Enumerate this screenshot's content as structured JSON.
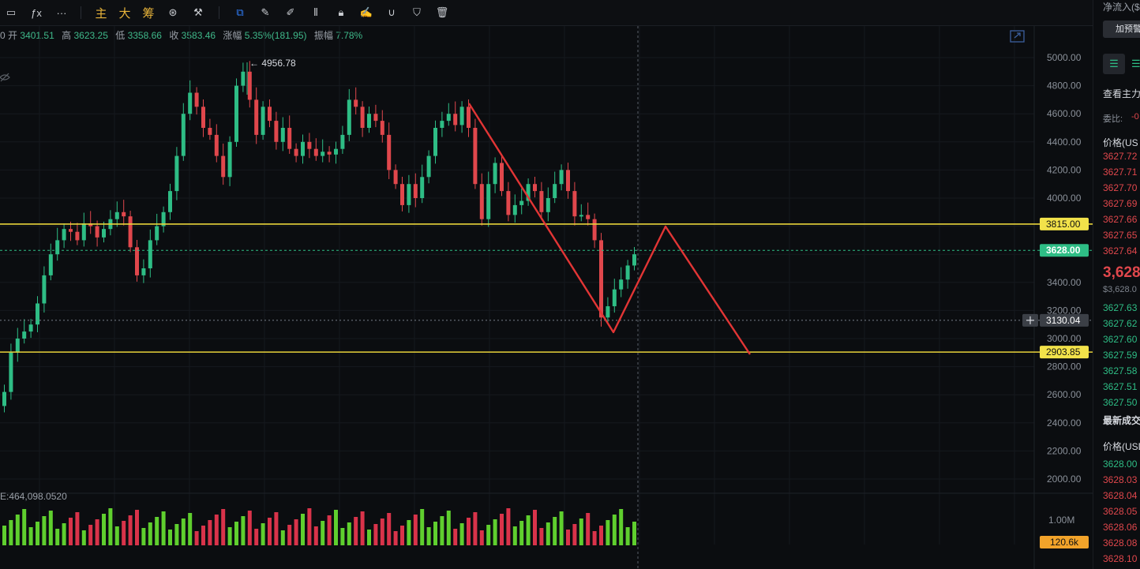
{
  "toolbar": {
    "items": [
      {
        "name": "rect-tool-icon",
        "glyph": "▭"
      },
      {
        "name": "indicator-icon",
        "glyph": "ƒx"
      },
      {
        "name": "more-icon",
        "glyph": "···"
      },
      {
        "name": "sep"
      },
      {
        "name": "main-label",
        "label": "主",
        "cn": true
      },
      {
        "name": "big-label",
        "label": "大",
        "cn": true
      },
      {
        "name": "chip-label",
        "label": "筹",
        "cn": true
      },
      {
        "name": "chip-dist-icon",
        "glyph": "⊛"
      },
      {
        "name": "tools-icon",
        "glyph": "⚒"
      },
      {
        "name": "sep"
      },
      {
        "name": "layers-icon",
        "glyph": "⧉",
        "active": true
      },
      {
        "name": "ruler-icon",
        "glyph": "✎"
      },
      {
        "name": "pen-icon",
        "glyph": "✐"
      },
      {
        "name": "candles-icon",
        "glyph": "⫴"
      },
      {
        "name": "lock-icon",
        "glyph": "🔒︎"
      },
      {
        "name": "note-icon",
        "glyph": "✍"
      },
      {
        "name": "magnet-icon",
        "glyph": "∪"
      },
      {
        "name": "filter-icon",
        "glyph": "⛉"
      },
      {
        "name": "trash-icon",
        "glyph": "🗑︎"
      }
    ]
  },
  "ohlc": {
    "prefix": "0",
    "open_label": "开",
    "open": "3401.51",
    "high_label": "高",
    "high": "3623.25",
    "low_label": "低",
    "low": "3358.66",
    "close_label": "收",
    "close": "3583.46",
    "change_label": "涨幅",
    "change": "5.35%(181.95)",
    "amp_label": "振幅",
    "amp": "7.78%"
  },
  "chart": {
    "high_marker": "← 4956.78",
    "volume_label": "E:464,098.0520",
    "price_axis": [
      "5000.00",
      "4800.00",
      "4600.00",
      "4400.00",
      "4200.00",
      "4000.00",
      "3400.00",
      "3200.00",
      "3000.00",
      "2800.00",
      "2600.00",
      "2400.00",
      "2200.00",
      "2000.00"
    ],
    "volume_axis": "1.00M",
    "levels": [
      {
        "label": "3815.00",
        "price": 3815,
        "kind": "yellow"
      },
      {
        "label": "3628.00",
        "price": 3628,
        "kind": "green"
      },
      {
        "label": "3130.04",
        "price": 3130.04,
        "kind": "cursor"
      },
      {
        "label": "2903.85",
        "price": 2903.85,
        "kind": "yellow"
      }
    ],
    "volume_tag": "120.6k",
    "colors": {
      "up": "#2ebd85",
      "down": "#e0474c",
      "level": "#e8d33a",
      "pattern": "#e23535",
      "vol_up": "#5fcf2e",
      "vol_down": "#d9334a"
    }
  },
  "sidebar": {
    "net_inflow": "净流入($",
    "alert_button": "加预警",
    "view_main": "查看主力",
    "ratio": "委比:",
    "ratio_value": "-0",
    "ask_header": "价格(US",
    "asks": [
      "3627.72",
      "3627.71",
      "3627.70",
      "3627.69",
      "3627.66",
      "3627.65",
      "3627.64"
    ],
    "last_price": "3,628",
    "last_price_usd": "$3,628.0",
    "bids": [
      "3627.63",
      "3627.62",
      "3627.60",
      "3627.59",
      "3627.58",
      "3627.51",
      "3627.50"
    ],
    "trades_title": "最新成交",
    "trades_header": "价格(USD",
    "trades": [
      {
        "p": "3628.00",
        "c": "grn"
      },
      {
        "p": "3628.03",
        "c": "red"
      },
      {
        "p": "3628.04",
        "c": "red"
      },
      {
        "p": "3628.05",
        "c": "red"
      },
      {
        "p": "3628.06",
        "c": "red"
      },
      {
        "p": "3628.08",
        "c": "red"
      },
      {
        "p": "3628.10",
        "c": "red"
      }
    ]
  }
}
